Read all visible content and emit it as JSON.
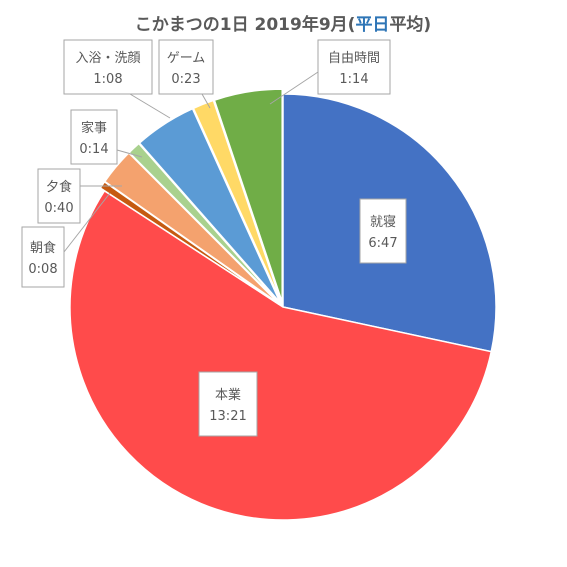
{
  "chart_data": {
    "type": "pie",
    "title": {
      "parts": [
        {
          "text": "こかまつの1日  2019年9月(",
          "color": "#595959"
        },
        {
          "text": "平日",
          "color": "#2E75B6"
        },
        {
          "text": "平均)",
          "color": "#595959"
        }
      ]
    },
    "start_angle_deg": 0,
    "direction": "clockwise",
    "slices": [
      {
        "name": "就寝",
        "value_label": "6:47",
        "minutes": 407,
        "color": "#4472C4"
      },
      {
        "name": "本業",
        "value_label": "13:21",
        "minutes": 801,
        "color": "#FF4B4B"
      },
      {
        "name": "朝食",
        "value_label": "0:08",
        "minutes": 8,
        "color": "#C55A11"
      },
      {
        "name": "夕食",
        "value_label": "0:40",
        "minutes": 40,
        "color": "#F4A26E"
      },
      {
        "name": "家事",
        "value_label": "0:14",
        "minutes": 14,
        "color": "#A9D18E"
      },
      {
        "name": "入浴・洗顔",
        "value_label": "1:08",
        "minutes": 68,
        "color": "#5B9BD5"
      },
      {
        "name": "ゲーム",
        "value_label": "0:23",
        "minutes": 23,
        "color": "#FFD966"
      },
      {
        "name": "自由時間",
        "value_label": "1:14",
        "minutes": 74,
        "color": "#70AD47"
      }
    ],
    "legend": "none",
    "data_labels": "category name and value"
  }
}
